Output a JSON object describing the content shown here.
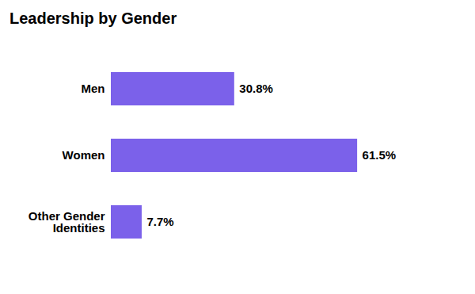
{
  "chart_data": {
    "type": "bar",
    "title": "Leadership by Gender",
    "orientation": "horizontal",
    "categories": [
      "Men",
      "Women",
      "Other Gender\nIdentities"
    ],
    "values": [
      30.8,
      61.5,
      7.7
    ],
    "value_labels": [
      "30.8%",
      "61.5%",
      "7.7%"
    ],
    "data_labels": true,
    "color": "#7B61EA",
    "xlim": [
      0,
      85
    ],
    "tick_labels": "y",
    "grid": false
  }
}
